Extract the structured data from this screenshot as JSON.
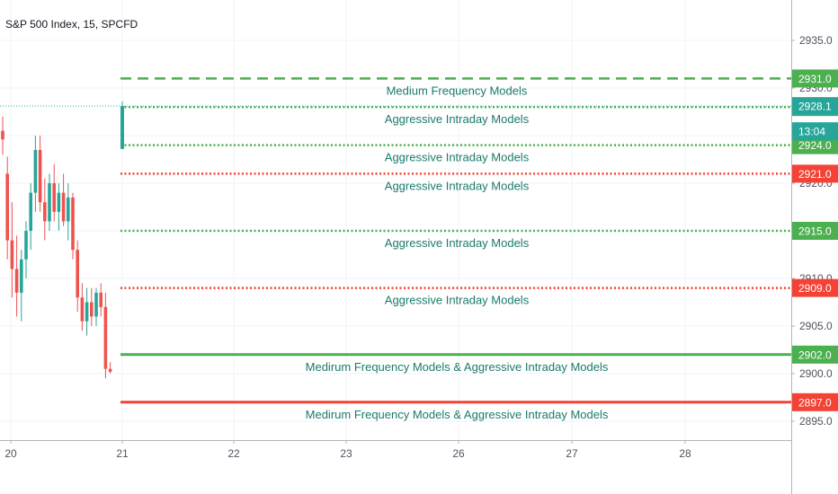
{
  "chart_data": {
    "type": "candlestick",
    "title": "S&P 500 Index, 15, SPCFD",
    "y_axis": {
      "range": [
        2892.1,
        2939.3
      ],
      "ticks": [
        2935.0,
        2930.0,
        2925.0,
        2920.0,
        2915.0,
        2910.0,
        2905.0,
        2900.0,
        2895.0
      ],
      "tick_labels": [
        "2935.0",
        "2930.0",
        "2925.0",
        "2920.0",
        "2915.0",
        "2910.0",
        "2905.0",
        "2900.0",
        "2895.0"
      ],
      "position": "right"
    },
    "x_axis": {
      "labels": [
        "20",
        "21",
        "22",
        "23",
        "26",
        "27",
        "28"
      ]
    },
    "grid": true,
    "colors": {
      "up": "#26a69a",
      "down": "#ef5350",
      "support": "#4caf50",
      "resistance": "#f44336",
      "annotation": "#1a7a6c",
      "price": "#26a69a"
    },
    "candles": [
      {
        "o": 2925.5,
        "h": 2927.0,
        "l": 2923.0,
        "c": 2924.6
      },
      {
        "o": 2921.0,
        "h": 2922.8,
        "l": 2912.0,
        "c": 2914.0
      },
      {
        "o": 2914.0,
        "h": 2918.0,
        "l": 2908.0,
        "c": 2911.0
      },
      {
        "o": 2911.0,
        "h": 2914.5,
        "l": 2906.0,
        "c": 2908.5
      },
      {
        "o": 2908.5,
        "h": 2913.0,
        "l": 2905.5,
        "c": 2912.0
      },
      {
        "o": 2912.0,
        "h": 2916.0,
        "l": 2910.0,
        "c": 2915.0
      },
      {
        "o": 2915.0,
        "h": 2920.0,
        "l": 2913.0,
        "c": 2919.0
      },
      {
        "o": 2919.0,
        "h": 2925.0,
        "l": 2917.0,
        "c": 2923.5
      },
      {
        "o": 2923.5,
        "h": 2925.0,
        "l": 2917.0,
        "c": 2918.0
      },
      {
        "o": 2918.0,
        "h": 2920.5,
        "l": 2914.0,
        "c": 2916.0
      },
      {
        "o": 2916.0,
        "h": 2921.0,
        "l": 2915.0,
        "c": 2920.0
      },
      {
        "o": 2920.0,
        "h": 2922.0,
        "l": 2916.0,
        "c": 2917.0
      },
      {
        "o": 2917.0,
        "h": 2920.0,
        "l": 2915.0,
        "c": 2919.0
      },
      {
        "o": 2919.0,
        "h": 2921.0,
        "l": 2915.5,
        "c": 2916.0
      },
      {
        "o": 2916.0,
        "h": 2920.0,
        "l": 2914.0,
        "c": 2918.5
      },
      {
        "o": 2918.5,
        "h": 2919.0,
        "l": 2912.0,
        "c": 2913.0
      },
      {
        "o": 2913.0,
        "h": 2914.0,
        "l": 2906.5,
        "c": 2908.0
      },
      {
        "o": 2908.0,
        "h": 2909.5,
        "l": 2904.5,
        "c": 2905.5
      },
      {
        "o": 2905.5,
        "h": 2909.0,
        "l": 2904.0,
        "c": 2907.5
      },
      {
        "o": 2907.5,
        "h": 2909.0,
        "l": 2905.0,
        "c": 2906.0
      },
      {
        "o": 2906.0,
        "h": 2909.0,
        "l": 2905.0,
        "c": 2908.5
      },
      {
        "o": 2908.5,
        "h": 2909.5,
        "l": 2906.0,
        "c": 2907.0
      },
      {
        "o": 2907.0,
        "h": 2908.5,
        "l": 2899.5,
        "c": 2900.5
      },
      {
        "o": 2900.5,
        "h": 2901.2,
        "l": 2900.0,
        "c": 2900.2
      }
    ],
    "current_candle": {
      "o": 2923.6,
      "h": 2928.6,
      "l": 2923.6,
      "c": 2928.1
    },
    "current_price": {
      "value": 2928.1,
      "label": "2928.1",
      "countdown": "13:04"
    },
    "levels": [
      {
        "value": 2931.0,
        "label": "2931.0",
        "kind": "support",
        "style": "dashed",
        "annotation": "Medium Frequency Models"
      },
      {
        "value": 2928.0,
        "label": "2928.0",
        "kind": "support",
        "style": "dotted",
        "annotation": "Aggressive Intraday Models"
      },
      {
        "value": 2924.0,
        "label": "2924.0",
        "kind": "support",
        "style": "dotted",
        "annotation": "Aggressive Intraday Models"
      },
      {
        "value": 2921.0,
        "label": "2921.0",
        "kind": "resistance",
        "style": "dotted",
        "annotation": "Aggressive Intraday Models"
      },
      {
        "value": 2915.0,
        "label": "2915.0",
        "kind": "support",
        "style": "dotted",
        "annotation": "Aggressive Intraday Models"
      },
      {
        "value": 2909.0,
        "label": "2909.0",
        "kind": "resistance",
        "style": "dotted",
        "annotation": "Aggressive Intraday Models"
      },
      {
        "value": 2902.0,
        "label": "2902.0",
        "kind": "support",
        "style": "solid",
        "annotation": "Medirum Frequency Models & Aggressive Intraday Models"
      },
      {
        "value": 2897.0,
        "label": "2897.0",
        "kind": "resistance",
        "style": "solid",
        "annotation": "Medirum Frequency Models & Aggressive Intraday Models"
      }
    ]
  }
}
